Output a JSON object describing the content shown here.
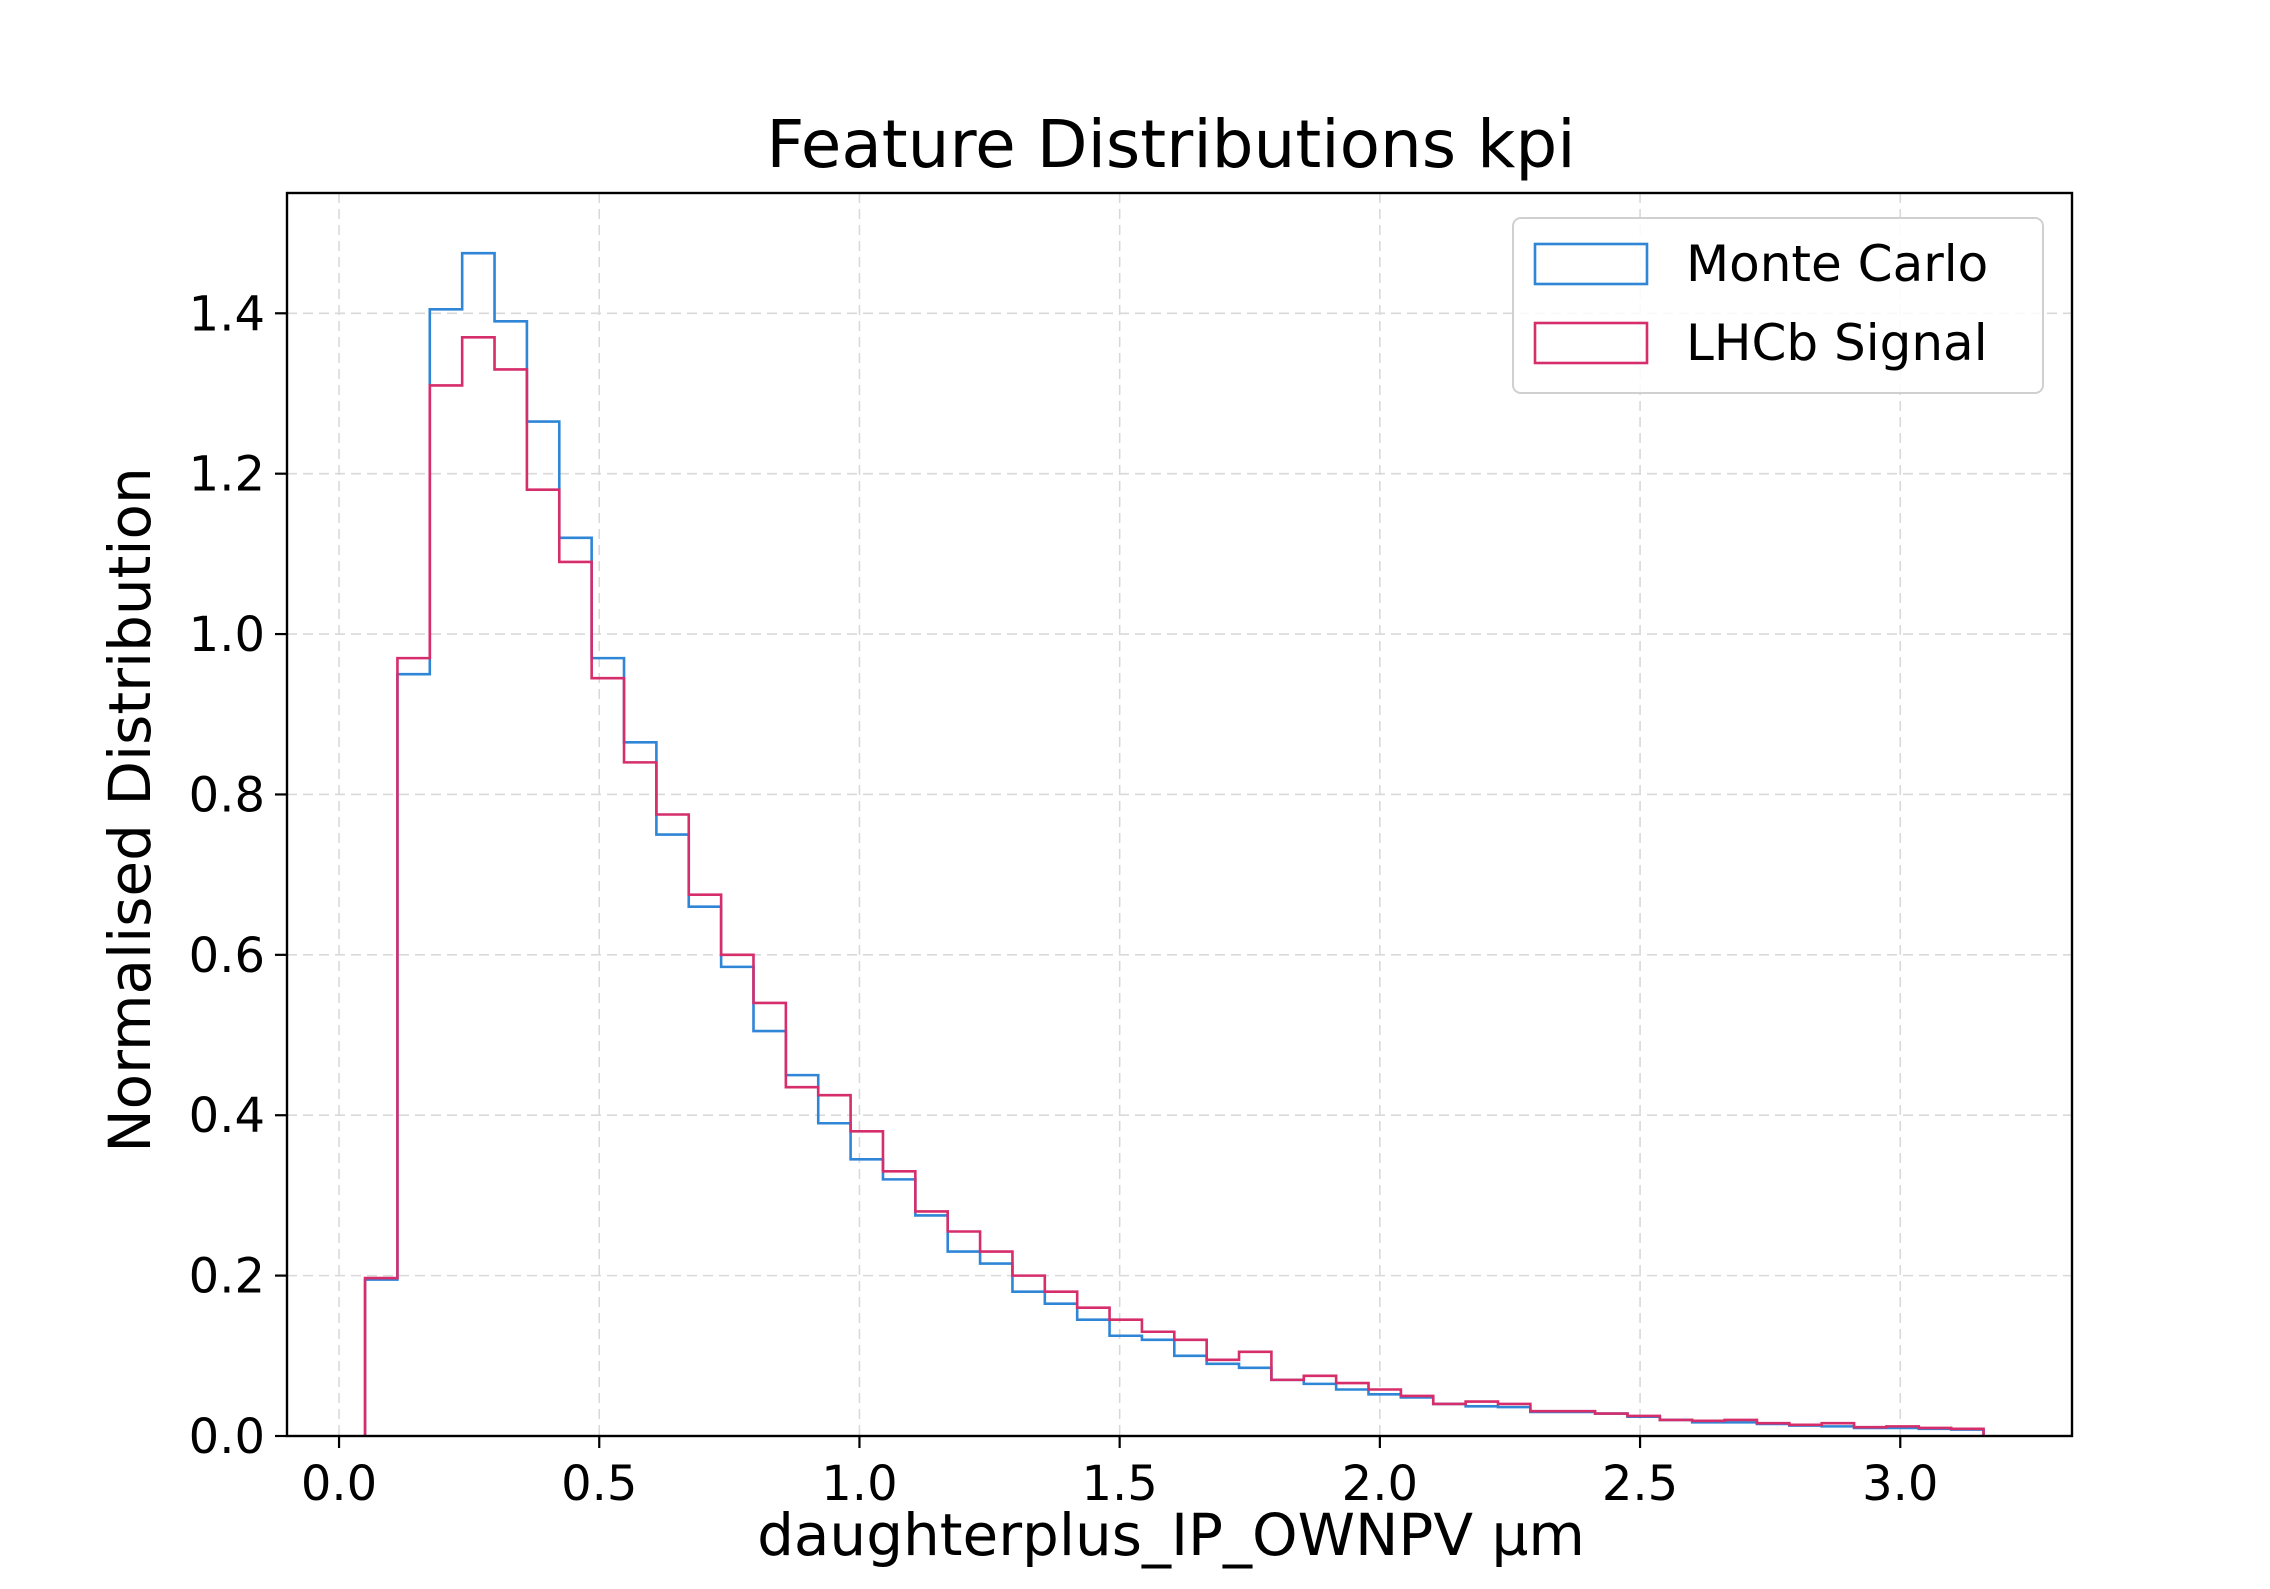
{
  "chart_data": {
    "type": "histogram-step",
    "title": "Feature Distributions kpi",
    "xlabel": "daughterplus_IP_OWNPV µm",
    "ylabel": "Normalised Distribution",
    "xlim": [
      -0.1,
      3.33
    ],
    "ylim": [
      0.0,
      1.55
    ],
    "xticks": [
      0.0,
      0.5,
      1.0,
      1.5,
      2.0,
      2.5,
      3.0
    ],
    "xtick_labels": [
      "0.0",
      "0.5",
      "1.0",
      "1.5",
      "2.0",
      "2.5",
      "3.0"
    ],
    "yticks": [
      0.0,
      0.2,
      0.4,
      0.6,
      0.8,
      1.0,
      1.2,
      1.4
    ],
    "ytick_labels": [
      "0.0",
      "0.2",
      "0.4",
      "0.6",
      "0.8",
      "1.0",
      "1.2",
      "1.4"
    ],
    "grid": true,
    "legend_position": "top-right",
    "bin_start": 0.05,
    "bin_width": 0.0622,
    "series": [
      {
        "name": "Monte Carlo",
        "color": "#2f85d6",
        "values": [
          0.195,
          0.95,
          1.405,
          1.475,
          1.39,
          1.265,
          1.12,
          0.97,
          0.865,
          0.75,
          0.66,
          0.585,
          0.505,
          0.45,
          0.39,
          0.345,
          0.32,
          0.275,
          0.23,
          0.215,
          0.18,
          0.165,
          0.145,
          0.125,
          0.12,
          0.1,
          0.09,
          0.085,
          0.07,
          0.065,
          0.058,
          0.052,
          0.048,
          0.04,
          0.037,
          0.036,
          0.03,
          0.03,
          0.028,
          0.024,
          0.02,
          0.017,
          0.017,
          0.015,
          0.013,
          0.012,
          0.01,
          0.01,
          0.009,
          0.008
        ]
      },
      {
        "name": "LHCb Signal",
        "color": "#d62d6b",
        "values": [
          0.197,
          0.97,
          1.31,
          1.37,
          1.33,
          1.18,
          1.09,
          0.945,
          0.84,
          0.775,
          0.675,
          0.6,
          0.54,
          0.435,
          0.425,
          0.38,
          0.33,
          0.28,
          0.255,
          0.23,
          0.2,
          0.18,
          0.16,
          0.145,
          0.13,
          0.12,
          0.095,
          0.105,
          0.07,
          0.075,
          0.066,
          0.058,
          0.05,
          0.04,
          0.043,
          0.04,
          0.031,
          0.031,
          0.028,
          0.025,
          0.02,
          0.019,
          0.02,
          0.016,
          0.014,
          0.016,
          0.011,
          0.012,
          0.01,
          0.009
        ]
      }
    ]
  }
}
